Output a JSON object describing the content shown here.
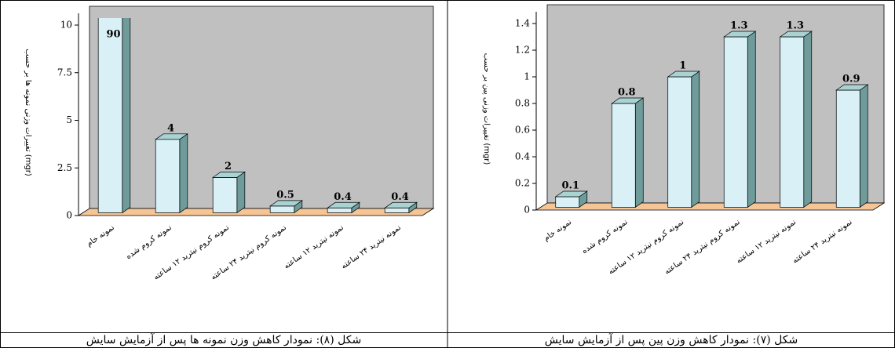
{
  "chart_data": [
    {
      "type": "bar3d",
      "y_label": "تغییرات وزنی نمونه ها بر حسب (mgr)",
      "categories": [
        "نمونه خام",
        "نمونه کروم شده",
        "نمونه کروم نیترید ۱۲ ساعته",
        "نمونه کروم نیترید ۲۴ ساعته",
        "نمونه نیترید ۱۲ ساعته",
        "نمونه نیترید ۲۴ ساعته"
      ],
      "values": [
        90,
        4,
        2,
        0.5,
        0.4,
        0.4
      ],
      "ylim": [
        0,
        10
      ],
      "yticks": [
        0,
        2.5,
        5,
        7.5,
        10
      ],
      "color": "#d8f0f6",
      "caption": "شکل (۸): نمودار کاهش وزن نمونه ها پس از آزمایش سایش"
    },
    {
      "type": "bar3d",
      "y_label": "تغییرات وزنی پین بر حسب (mgr)",
      "categories": [
        "نمونه خام",
        "نمونه کروم شده",
        "نمونه کروم نیترید ۱۲ ساعته",
        "نمونه کروم نیترید ۲۴ ساعته",
        "نمونه نیترید ۱۲ ساعته",
        "نمونه نیترید ۲۴ ساعته"
      ],
      "values": [
        0.1,
        0.8,
        1,
        1.3,
        1.3,
        0.9
      ],
      "ylim": [
        0,
        1.4
      ],
      "yticks": [
        0,
        0.2,
        0.4,
        0.6,
        0.8,
        1,
        1.2,
        1.4
      ],
      "color": "#d8f0f6",
      "caption": "شکل (۷): نمودار کاهش وزن پین پس از آزمایش سایش"
    }
  ]
}
